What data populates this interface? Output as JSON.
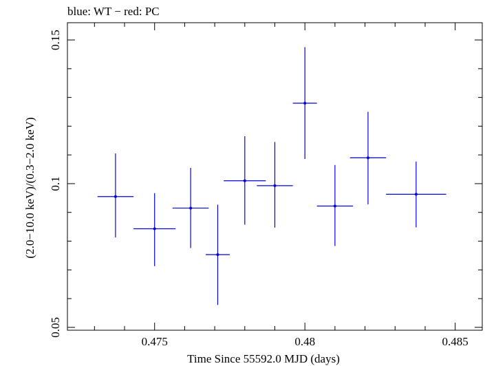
{
  "chart_data": {
    "type": "scatter",
    "title": "blue: WT − red: PC",
    "xlabel": "Time Since 55592.0 MJD (days)",
    "ylabel": "(2.0−10.0 keV)/(0.3−2.0 keV)",
    "xlim": [
      0.4721,
      0.4859
    ],
    "ylim": [
      0.049,
      0.156
    ],
    "x_ticks": [
      {
        "value": 0.475,
        "label": "0.475"
      },
      {
        "value": 0.48,
        "label": "0.48"
      },
      {
        "value": 0.485,
        "label": "0.485"
      }
    ],
    "y_ticks": [
      {
        "value": 0.05,
        "label": "0.05"
      },
      {
        "value": 0.1,
        "label": "0.1"
      },
      {
        "value": 0.15,
        "label": "0.15"
      }
    ],
    "series": [
      {
        "name": "WT",
        "color": "#0000dd",
        "points": [
          {
            "x": 0.4737,
            "xerr": 0.0006,
            "y": 0.0955,
            "ylo": 0.0813,
            "yhi": 0.1105
          },
          {
            "x": 0.475,
            "xerr": 0.0007,
            "y": 0.0843,
            "ylo": 0.0713,
            "yhi": 0.0967
          },
          {
            "x": 0.4762,
            "xerr": 0.0006,
            "y": 0.0915,
            "ylo": 0.0776,
            "yhi": 0.1055
          },
          {
            "x": 0.4771,
            "xerr": 0.0004,
            "y": 0.0753,
            "ylo": 0.0578,
            "yhi": 0.0927
          },
          {
            "x": 0.478,
            "xerr": 0.0007,
            "y": 0.101,
            "ylo": 0.0857,
            "yhi": 0.1165
          },
          {
            "x": 0.479,
            "xerr": 0.0006,
            "y": 0.0993,
            "ylo": 0.0847,
            "yhi": 0.1145
          },
          {
            "x": 0.48,
            "xerr": 0.0004,
            "y": 0.128,
            "ylo": 0.1086,
            "yhi": 0.1475
          },
          {
            "x": 0.481,
            "xerr": 0.0006,
            "y": 0.0922,
            "ylo": 0.0783,
            "yhi": 0.1065
          },
          {
            "x": 0.4821,
            "xerr": 0.0006,
            "y": 0.109,
            "ylo": 0.0928,
            "yhi": 0.125
          },
          {
            "x": 0.4837,
            "xerr": 0.001,
            "y": 0.0963,
            "ylo": 0.0848,
            "yhi": 0.1077
          }
        ]
      }
    ]
  }
}
